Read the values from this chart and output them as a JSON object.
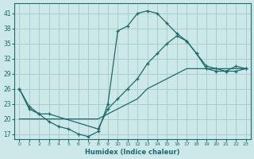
{
  "xlabel": "Humidex (Indice chaleur)",
  "background_color": "#cde8e8",
  "grid_color": "#aecccc",
  "line_color": "#1a6b6b",
  "xlim": [
    -0.5,
    23.5
  ],
  "ylim": [
    16,
    43
  ],
  "yticks": [
    17,
    20,
    23,
    26,
    29,
    32,
    35,
    38,
    41
  ],
  "xticks": [
    0,
    1,
    2,
    3,
    4,
    5,
    6,
    7,
    8,
    9,
    10,
    11,
    12,
    13,
    14,
    15,
    16,
    17,
    18,
    19,
    20,
    21,
    22,
    23
  ],
  "series1_x": [
    0,
    1,
    2,
    3,
    4,
    5,
    6,
    7,
    8,
    9,
    10,
    11,
    12,
    13,
    14,
    15,
    16,
    17,
    18,
    19,
    20,
    21,
    22,
    23
  ],
  "series1_y": [
    26,
    22.5,
    21,
    19.5,
    18.5,
    18,
    17,
    16.5,
    17.5,
    23,
    37.5,
    38.5,
    41,
    41.5,
    41,
    39,
    37,
    35.5,
    33,
    30,
    29.5,
    29.5,
    30.5,
    30
  ],
  "series2_x": [
    0,
    1,
    2,
    3,
    4,
    5,
    6,
    7,
    8,
    9,
    10,
    11,
    12,
    13,
    14,
    15,
    16,
    17,
    18,
    19,
    20,
    21,
    22,
    23
  ],
  "series2_y": [
    20,
    20,
    20,
    20,
    20,
    20,
    20,
    20,
    20,
    21,
    22,
    23,
    24,
    26,
    27,
    28,
    29,
    30,
    30,
    30,
    30,
    30,
    30,
    30
  ],
  "series3_x": [
    0,
    1,
    2,
    3,
    8,
    9,
    10,
    11,
    12,
    13,
    14,
    15,
    16,
    17,
    18,
    19,
    20,
    21,
    22,
    23
  ],
  "series3_y": [
    26,
    22,
    21,
    21,
    18,
    22,
    24,
    26,
    28,
    31,
    33,
    35,
    36.5,
    35.5,
    33,
    30.5,
    30,
    29.5,
    29.5,
    30
  ]
}
